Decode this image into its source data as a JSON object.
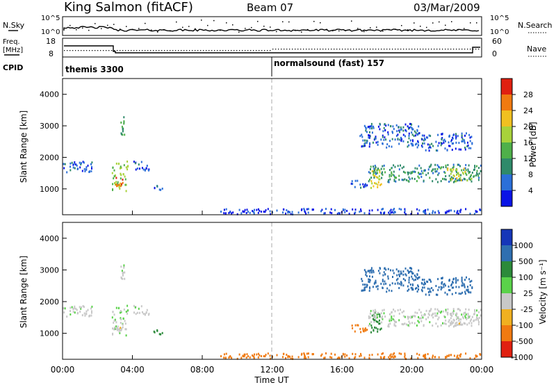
{
  "header": {
    "station": "King Salmon (fitACF)",
    "beam": "Beam 07",
    "date": "03/Mar/2009"
  },
  "top_panel": {
    "left_label_1": "N.Sky",
    "left_label_2": "Freq.",
    "left_label_3": "[MHz]",
    "left_label_4": "CPID",
    "right_label_1": "N.Search",
    "right_label_2": "Nave",
    "nsky_ticks": [
      "10^5",
      "10^0"
    ],
    "nsearch_ticks": [
      "10^5",
      "10^0"
    ],
    "freq_ticks": [
      "18",
      "8"
    ],
    "nave_ticks": [
      "60",
      "0"
    ],
    "cpid_1": "themis 3300",
    "cpid_2": "normalsound (fast) 157",
    "cpid_switch_hour": 12.0
  },
  "x_axis": {
    "label": "Time UT",
    "ticks": [
      "00:00",
      "04:00",
      "08:00",
      "12:00",
      "16:00",
      "20:00",
      "00:00"
    ],
    "tick_hours": [
      0,
      4,
      8,
      12,
      16,
      20,
      24
    ]
  },
  "y_axis": {
    "label": "Slant Range [km]",
    "ticks": [
      "1000",
      "2000",
      "3000",
      "4000"
    ],
    "tick_values": [
      1000,
      2000,
      3000,
      4000
    ]
  },
  "power_scale": {
    "label": "Power [dB]",
    "ticks": [
      "4",
      "8",
      "12",
      "16",
      "20",
      "24",
      "28"
    ],
    "colors": [
      "#0a14e6",
      "#2b6fd8",
      "#2f8a6a",
      "#4fb04a",
      "#a8d23a",
      "#f0c020",
      "#f07a10",
      "#e02010",
      "#d81010"
    ]
  },
  "velocity_scale": {
    "label": "Velocity [m s⁻¹]",
    "ticks": [
      "1000",
      "500",
      "100",
      "25",
      "-25",
      "-100",
      "-500",
      "-1000"
    ],
    "colors": [
      "#1636b8",
      "#2f6fb0",
      "#2c8a3a",
      "#5ad24a",
      "#c8c8c8",
      "#f0b020",
      "#f07a10",
      "#e02010",
      "#e80000"
    ]
  },
  "chart_data": {
    "type": "heatmap",
    "title": "King Salmon (fitACF) Beam 07 03/Mar/2009",
    "xlabel": "Time UT",
    "ylabel": "Slant Range [km]",
    "xlim": [
      0,
      24
    ],
    "ylim": [
      180,
      4500
    ],
    "panels": [
      "Power [dB]",
      "Velocity [m s⁻¹]"
    ],
    "power_range": [
      0,
      30
    ],
    "velocity_range": [
      -1000,
      1000
    ],
    "regions": [
      {
        "t": [
          0.0,
          1.8
        ],
        "r": [
          1500,
          1900
        ],
        "power": 6,
        "velocity": 10
      },
      {
        "t": [
          2.8,
          3.8
        ],
        "r": [
          900,
          1900
        ],
        "power": 16,
        "velocity": 10
      },
      {
        "t": [
          3.0,
          3.6
        ],
        "r": [
          1000,
          1400
        ],
        "power": 26,
        "velocity": 0
      },
      {
        "t": [
          3.3,
          3.6
        ],
        "r": [
          2700,
          3500
        ],
        "power": 12,
        "velocity": 5
      },
      {
        "t": [
          4.0,
          5.0
        ],
        "r": [
          1500,
          1900
        ],
        "power": 5,
        "velocity": 5
      },
      {
        "t": [
          5.2,
          5.8
        ],
        "r": [
          950,
          1150
        ],
        "power": 5,
        "velocity": 110
      },
      {
        "t": [
          16.5,
          17.5
        ],
        "r": [
          1000,
          1300
        ],
        "power": 6,
        "velocity": -300
      },
      {
        "t": [
          17.6,
          18.3
        ],
        "r": [
          1000,
          1700
        ],
        "power": 20,
        "velocity": 120
      },
      {
        "t": [
          17.5,
          24.0
        ],
        "r": [
          1200,
          1800
        ],
        "power": 10,
        "velocity": 5
      },
      {
        "t": [
          17.0,
          20.5
        ],
        "r": [
          2300,
          3100
        ],
        "power": 6,
        "velocity": 600
      },
      {
        "t": [
          20.5,
          23.5
        ],
        "r": [
          2200,
          2800
        ],
        "power": 5,
        "velocity": 400
      },
      {
        "t": [
          22.0,
          23.5
        ],
        "r": [
          1200,
          1700
        ],
        "power": 18,
        "velocity": 0
      },
      {
        "t": [
          9.0,
          24.0
        ],
        "r": [
          180,
          400
        ],
        "power": 4,
        "velocity": -150
      }
    ]
  }
}
